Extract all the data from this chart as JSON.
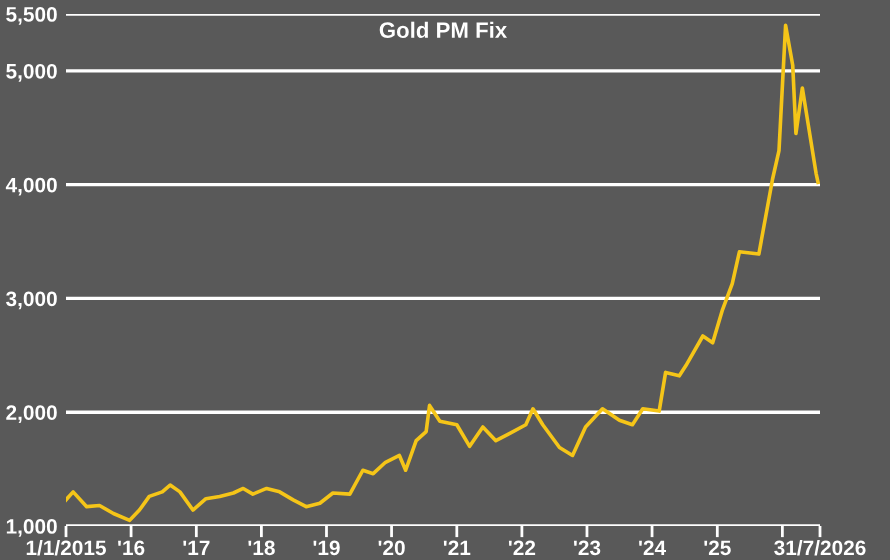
{
  "chart_data": {
    "type": "line",
    "title": "Gold PM Fix",
    "x": [
      "2015-01-01",
      "2015-02-10",
      "2015-04-27",
      "2015-07-08",
      "2015-09-24",
      "2015-12-24",
      "2016-02-17",
      "2016-04-12",
      "2016-06-24",
      "2016-08-07",
      "2016-10-01",
      "2016-12-13",
      "2017-02-24",
      "2017-05-12",
      "2017-07-28",
      "2017-09-21",
      "2017-11-14",
      "2018-01-30",
      "2018-04-13",
      "2018-06-28",
      "2018-09-09",
      "2018-11-25",
      "2019-02-06",
      "2019-05-12",
      "2019-07-24",
      "2019-09-20",
      "2019-11-28",
      "2020-02-14",
      "2020-03-20",
      "2020-05-18",
      "2020-07-13",
      "2020-08-01",
      "2020-09-28",
      "2021-01-01",
      "2021-03-14",
      "2021-05-27",
      "2021-08-08",
      "2021-10-20",
      "2022-01-23",
      "2022-03-04",
      "2022-04-28",
      "2022-07-31",
      "2022-10-12",
      "2022-12-24",
      "2023-03-29",
      "2023-07-02",
      "2023-09-13",
      "2023-11-10",
      "2024-02-10",
      "2024-03-17",
      "2024-06-02",
      "2024-07-09",
      "2024-10-12",
      "2024-12-06",
      "2025-01-30",
      "2025-03-26",
      "2025-05-05",
      "2025-08-22",
      "2025-11-07",
      "2025-12-13",
      "2026-01-19",
      "2026-02-28",
      "2026-03-18",
      "2026-04-23",
      "2026-07-09",
      "2026-07-20"
    ],
    "series": [
      {
        "color": "#f5c518",
        "values": [
          1230,
          1300,
          1170,
          1180,
          1110,
          1050,
          1140,
          1260,
          1300,
          1360,
          1300,
          1140,
          1240,
          1260,
          1290,
          1330,
          1280,
          1330,
          1300,
          1230,
          1170,
          1200,
          1290,
          1280,
          1490,
          1460,
          1560,
          1620,
          1490,
          1750,
          1830,
          2060,
          1920,
          1890,
          1700,
          1870,
          1750,
          1810,
          1890,
          2030,
          1890,
          1690,
          1620,
          1870,
          2030,
          1930,
          1890,
          2030,
          2010,
          2350,
          2320,
          2410,
          2670,
          2610,
          2900,
          3130,
          3410,
          3390,
          4050,
          4300,
          5400,
          5050,
          4450,
          4850,
          4100,
          4020
        ]
      }
    ],
    "xlim": [
      "2015-01-01",
      "2026-07-31"
    ],
    "xticks": [
      {
        "value": "2015-01-01",
        "label": "1/1/2015"
      },
      {
        "value": "2016-01-01",
        "label": "'16"
      },
      {
        "value": "2017-01-01",
        "label": "'17"
      },
      {
        "value": "2018-01-01",
        "label": "'18"
      },
      {
        "value": "2019-01-01",
        "label": "'19"
      },
      {
        "value": "2020-01-01",
        "label": "'20"
      },
      {
        "value": "2021-01-01",
        "label": "'21"
      },
      {
        "value": "2022-01-01",
        "label": "'22"
      },
      {
        "value": "2023-01-01",
        "label": "'23"
      },
      {
        "value": "2024-01-01",
        "label": "'24"
      },
      {
        "value": "2025-01-01",
        "label": "'25"
      },
      {
        "value": "2026-01-01",
        "label": null
      },
      {
        "value": "2026-07-31",
        "label": "31/7/2026"
      }
    ],
    "ylim": [
      1000,
      5500
    ],
    "yticks": [
      {
        "value": 1000,
        "label": "1,000"
      },
      {
        "value": 2000,
        "label": "2,000"
      },
      {
        "value": 3000,
        "label": "3,000"
      },
      {
        "value": 4000,
        "label": "4,000"
      },
      {
        "value": 5000,
        "label": "5,000"
      },
      {
        "value": 5500,
        "label": "5,500"
      }
    ],
    "grid": "y",
    "line_style": "solid",
    "marker": "none"
  }
}
